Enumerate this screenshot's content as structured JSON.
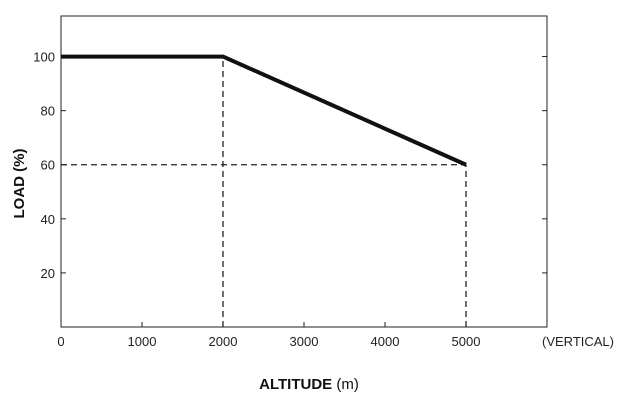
{
  "chart_data": {
    "type": "line",
    "title": "",
    "xlabel_bold": "ALTITUDE",
    "xlabel_unit": "(m)",
    "ylabel": "LOAD (%)",
    "x_note": "(VERTICAL)",
    "xlim": [
      0,
      6000
    ],
    "ylim": [
      0,
      115
    ],
    "x_ticks": [
      0,
      1000,
      2000,
      3000,
      4000,
      5000
    ],
    "y_ticks": [
      20,
      40,
      60,
      80,
      100
    ],
    "grid": false,
    "series": [
      {
        "x": [
          0,
          2000,
          5000
        ],
        "y": [
          100,
          100,
          60
        ]
      }
    ],
    "reference_lines": [
      {
        "kind": "vertical",
        "x": 2000,
        "y_from": 0,
        "y_to": 100
      },
      {
        "kind": "vertical",
        "x": 5000,
        "y_from": 0,
        "y_to": 60
      },
      {
        "kind": "horizontal",
        "y": 60,
        "x_from": 0,
        "x_to": 5000
      }
    ]
  }
}
